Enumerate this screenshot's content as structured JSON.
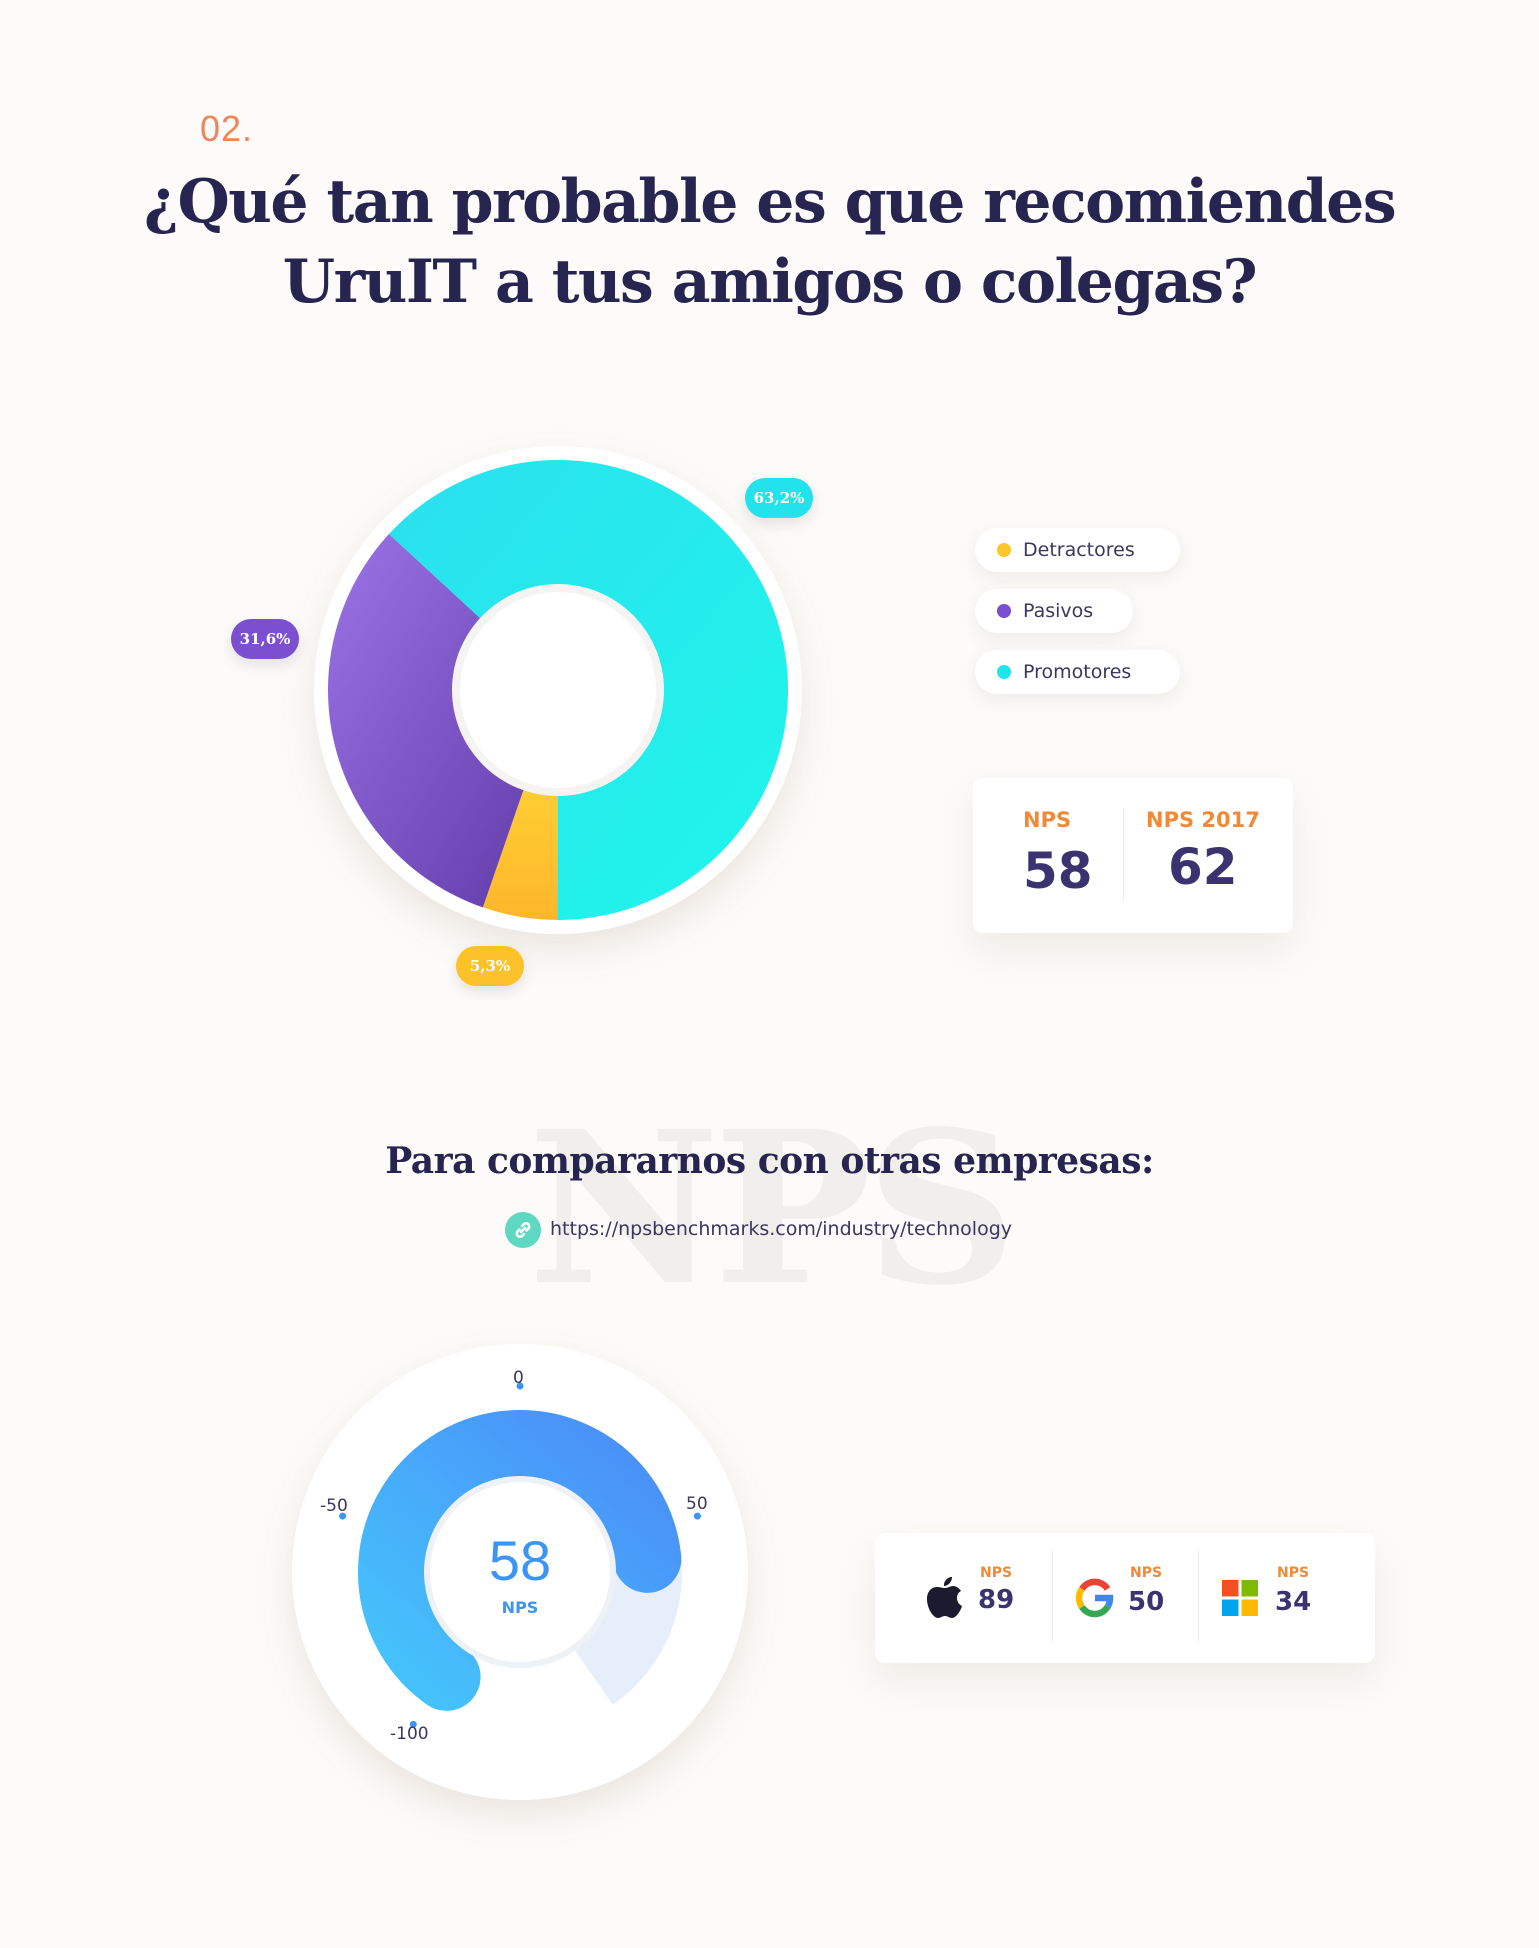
{
  "header": {
    "section_number": "02.",
    "title_line1": "¿Qué tan probable es que recomiendes",
    "title_line2": "UruIT a tus amigos o colegas?"
  },
  "chart_data": [
    {
      "type": "pie",
      "categories": [
        "Detractores",
        "Pasivos",
        "Promotores"
      ],
      "values": [
        5.3,
        31.6,
        63.2
      ],
      "data_labels": [
        "5,3%",
        "31,6%",
        "63,2%"
      ],
      "colors": [
        "#fdc72a",
        "#7b4fd0",
        "#1fe6ea"
      ],
      "legend_placement": "right"
    },
    {
      "type": "gauge",
      "value": 58,
      "value_label": "58",
      "label": "NPS",
      "range": [
        -100,
        100
      ],
      "ticks": [
        "-100",
        "-50",
        "0",
        "50"
      ],
      "colors": {
        "start": "#45c3fb",
        "end": "#4a8ef8",
        "track": "#e6eefa"
      }
    }
  ],
  "legend": {
    "items": [
      {
        "label": "Detractores",
        "color": "#fdc72a"
      },
      {
        "label": "Pasivos",
        "color": "#7b4fd0"
      },
      {
        "label": "Promotores",
        "color": "#1fe6ea"
      }
    ]
  },
  "nps_card": {
    "current_label": "NPS",
    "current_value": "58",
    "previous_label": "NPS 2017",
    "previous_value": "62"
  },
  "compare": {
    "watermark": "NPS",
    "heading": "Para compararnos con otras empresas:",
    "link": "https://npsbenchmarks.com/industry/technology"
  },
  "companies": [
    {
      "icon": "apple-icon",
      "label": "NPS",
      "value": "89"
    },
    {
      "icon": "google-icon",
      "label": "NPS",
      "value": "50"
    },
    {
      "icon": "microsoft-icon",
      "label": "NPS",
      "value": "34"
    }
  ]
}
